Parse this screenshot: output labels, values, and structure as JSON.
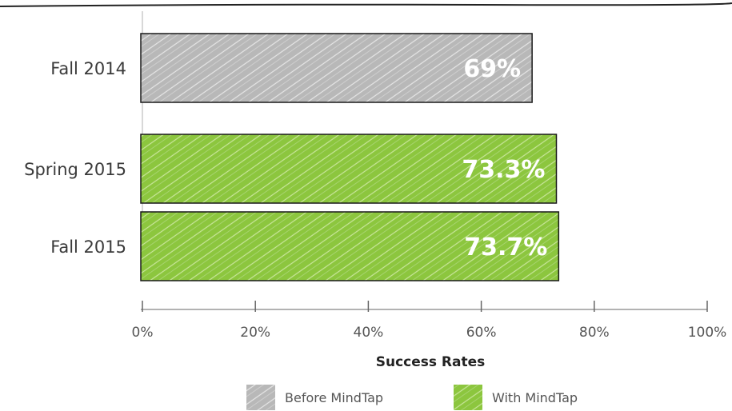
{
  "chart_data": {
    "type": "bar",
    "orientation": "horizontal",
    "categories": [
      "Fall 2014",
      "Spring 2015",
      "Fall 2015"
    ],
    "values": [
      69,
      73.3,
      73.7
    ],
    "data_labels": [
      "69%",
      "73.3%",
      "73.7%"
    ],
    "bar_series": [
      "Before MindTap",
      "With MindTap",
      "With MindTap"
    ],
    "xlabel": "Success Rates",
    "xlim": [
      0,
      100
    ],
    "xticks": [
      0,
      20,
      40,
      60,
      80,
      100
    ],
    "xtick_labels": [
      "0%",
      "20%",
      "40%",
      "60%",
      "80%",
      "100%"
    ],
    "grid": false,
    "legend_position": "bottom",
    "legend": [
      {
        "name": "Before MindTap",
        "color": "#b3b3b3"
      },
      {
        "name": "With MindTap",
        "color": "#8dc63f"
      }
    ]
  }
}
